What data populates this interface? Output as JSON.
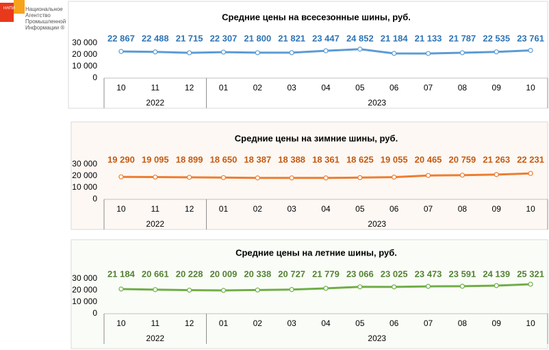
{
  "logo": {
    "short": "НАПИ",
    "lines": [
      "Национальное",
      "Агентство",
      "Промышленной",
      "Информации ®"
    ]
  },
  "chart_data": [
    {
      "type": "line",
      "title": "Средние цены на всесезонные шины, руб.",
      "category_groups": [
        {
          "label": "2022",
          "categories": [
            "10",
            "11",
            "12"
          ]
        },
        {
          "label": "2023",
          "categories": [
            "01",
            "02",
            "03",
            "04",
            "05",
            "06",
            "07",
            "08",
            "09",
            "10"
          ]
        }
      ],
      "series": [
        {
          "color": "#5b9bd5",
          "label_color": "#2e75b6",
          "values": [
            22867,
            22488,
            21715,
            22307,
            21800,
            21821,
            23447,
            24852,
            21184,
            21133,
            21787,
            22535,
            23761
          ],
          "value_labels": [
            "22 867",
            "22 488",
            "21 715",
            "22 307",
            "21 800",
            "21 821",
            "23 447",
            "24 852",
            "21 184",
            "21 133",
            "21 787",
            "22 535",
            "23 761"
          ]
        }
      ],
      "ylim": [
        0,
        30000
      ],
      "yticks": [
        0,
        {
          "value": 10000,
          "label": "10 000"
        },
        {
          "value": 20000,
          "label": "20 000"
        },
        {
          "value": 30000,
          "label": "30 000"
        }
      ],
      "background": "#ffffff"
    },
    {
      "type": "line",
      "title": "Средние цены на зимние шины, руб.",
      "category_groups": [
        {
          "label": "2022",
          "categories": [
            "10",
            "11",
            "12"
          ]
        },
        {
          "label": "2023",
          "categories": [
            "01",
            "02",
            "03",
            "04",
            "05",
            "06",
            "07",
            "08",
            "09",
            "10"
          ]
        }
      ],
      "series": [
        {
          "color": "#ed7d31",
          "label_color": "#c55a11",
          "values": [
            19290,
            19095,
            18899,
            18650,
            18387,
            18388,
            18361,
            18625,
            19055,
            20465,
            20759,
            21263,
            22231
          ],
          "value_labels": [
            "19 290",
            "19 095",
            "18 899",
            "18 650",
            "18 387",
            "18 388",
            "18 361",
            "18 625",
            "19 055",
            "20 465",
            "20 759",
            "21 263",
            "22 231"
          ]
        }
      ],
      "ylim": [
        0,
        30000
      ],
      "yticks": [
        0,
        {
          "value": 10000,
          "label": "10 000"
        },
        {
          "value": 20000,
          "label": "20 000"
        },
        {
          "value": 30000,
          "label": "30 000"
        }
      ],
      "background": "#fdf8f3"
    },
    {
      "type": "line",
      "title": "Средние цены на летние шины, руб.",
      "category_groups": [
        {
          "label": "2022",
          "categories": [
            "10",
            "11",
            "12"
          ]
        },
        {
          "label": "2023",
          "categories": [
            "01",
            "02",
            "03",
            "04",
            "05",
            "06",
            "07",
            "08",
            "09",
            "10"
          ]
        }
      ],
      "series": [
        {
          "color": "#70ad47",
          "label_color": "#548235",
          "values": [
            21184,
            20661,
            20228,
            20009,
            20338,
            20727,
            21779,
            23066,
            23025,
            23473,
            23591,
            24139,
            25321
          ],
          "value_labels": [
            "21 184",
            "20 661",
            "20 228",
            "20 009",
            "20 338",
            "20 727",
            "21 779",
            "23 066",
            "23 025",
            "23 473",
            "23 591",
            "24 139",
            "25 321"
          ]
        }
      ],
      "ylim": [
        0,
        30000
      ],
      "yticks": [
        0,
        {
          "value": 10000,
          "label": "10 000"
        },
        {
          "value": 20000,
          "label": "20 000"
        },
        {
          "value": 30000,
          "label": "30 000"
        }
      ],
      "background": "#fafdf7"
    }
  ]
}
